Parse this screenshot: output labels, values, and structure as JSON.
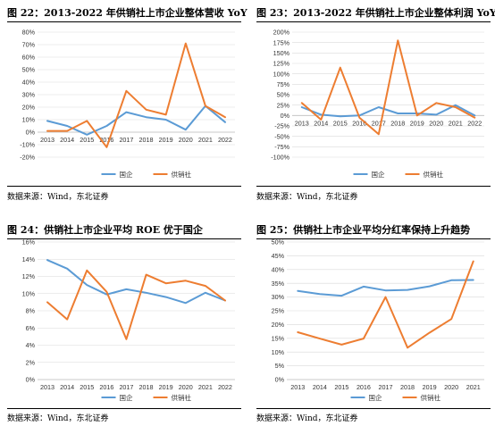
{
  "panels": [
    {
      "title": "图 22：2013-2022 年供销社上市企业整体营收 YoY",
      "source": "数据来源：Wind，东北证券"
    },
    {
      "title": "图 23：2013-2022 年供销社上市企业整体利润 YoY",
      "source": "数据来源：Wind，东北证券"
    },
    {
      "title": "图 24：供销社上市企业平均 ROE 优于国企",
      "source": "数据来源：Wind，东北证券"
    },
    {
      "title": "图 25：供销社上市企业平均分红率保持上升趋势",
      "source": "数据来源：Wind，东北证券"
    }
  ],
  "colors": {
    "guoqi": "#5b9bd5",
    "gongxiaoshe": "#ed7d31",
    "grid": "#d9d9d9"
  },
  "chart_data": [
    {
      "type": "line",
      "x": [
        "2013",
        "2014",
        "2015",
        "2016",
        "2017",
        "2018",
        "2019",
        "2020",
        "2021",
        "2022"
      ],
      "ylim": [
        -20,
        80
      ],
      "yticks": [
        -20,
        -10,
        0,
        10,
        20,
        30,
        40,
        50,
        60,
        70,
        80
      ],
      "tick_suffix": "%",
      "x_labels_at_zero": true,
      "grid": true,
      "legend_position": "bottom",
      "series": [
        {
          "name": "国企",
          "color": "#5b9bd5",
          "values": [
            9,
            5,
            -2,
            5,
            16,
            12,
            10,
            2,
            21,
            8
          ]
        },
        {
          "name": "供销社",
          "color": "#ed7d31",
          "values": [
            1,
            1,
            9,
            -12,
            33,
            18,
            14,
            71,
            21,
            12
          ]
        }
      ]
    },
    {
      "type": "line",
      "x": [
        "2013",
        "2014",
        "2015",
        "2016",
        "2017",
        "2018",
        "2019",
        "2020",
        "2021",
        "2022"
      ],
      "ylim": [
        -100,
        200
      ],
      "yticks": [
        -100,
        -75,
        -50,
        -25,
        0,
        25,
        50,
        75,
        100,
        125,
        150,
        175,
        200
      ],
      "tick_suffix": "%",
      "x_labels_at_zero": true,
      "grid": true,
      "legend_position": "bottom",
      "series": [
        {
          "name": "国企",
          "color": "#5b9bd5",
          "values": [
            20,
            2,
            -2,
            0,
            20,
            5,
            5,
            2,
            25,
            0
          ]
        },
        {
          "name": "供销社",
          "color": "#ed7d31",
          "values": [
            30,
            -10,
            115,
            -5,
            -45,
            180,
            0,
            30,
            20,
            -5
          ]
        }
      ]
    },
    {
      "type": "line",
      "x": [
        "2013",
        "2014",
        "2015",
        "2016",
        "2017",
        "2018",
        "2019",
        "2020",
        "2021",
        "2022"
      ],
      "ylim": [
        0,
        16
      ],
      "yticks": [
        0,
        2,
        4,
        6,
        8,
        10,
        12,
        14,
        16
      ],
      "tick_suffix": "%",
      "x_labels_at_zero": false,
      "grid": true,
      "legend_position": "bottom",
      "series": [
        {
          "name": "国企",
          "color": "#5b9bd5",
          "values": [
            13.9,
            12.9,
            11.0,
            9.9,
            10.5,
            10.1,
            9.6,
            8.9,
            10.1,
            9.2
          ]
        },
        {
          "name": "供销社",
          "color": "#ed7d31",
          "values": [
            9.0,
            7.0,
            12.7,
            10.2,
            4.7,
            12.2,
            11.2,
            11.5,
            10.9,
            9.2
          ]
        }
      ]
    },
    {
      "type": "line",
      "x": [
        "2013",
        "2014",
        "2015",
        "2016",
        "2017",
        "2018",
        "2019",
        "2020",
        "2021"
      ],
      "ylim": [
        0,
        50
      ],
      "yticks": [
        0,
        5,
        10,
        15,
        20,
        25,
        30,
        35,
        40,
        45,
        50
      ],
      "tick_suffix": "%",
      "x_labels_at_zero": false,
      "grid": true,
      "legend_position": "bottom",
      "series": [
        {
          "name": "国企",
          "color": "#5b9bd5",
          "values": [
            32.2,
            31.1,
            30.5,
            33.8,
            32.4,
            32.6,
            33.9,
            36.1,
            36.2
          ]
        },
        {
          "name": "供销社",
          "color": "#ed7d31",
          "values": [
            17.2,
            14.9,
            12.7,
            14.9,
            30.0,
            11.6,
            17.0,
            22.0,
            43.0
          ]
        }
      ]
    }
  ]
}
